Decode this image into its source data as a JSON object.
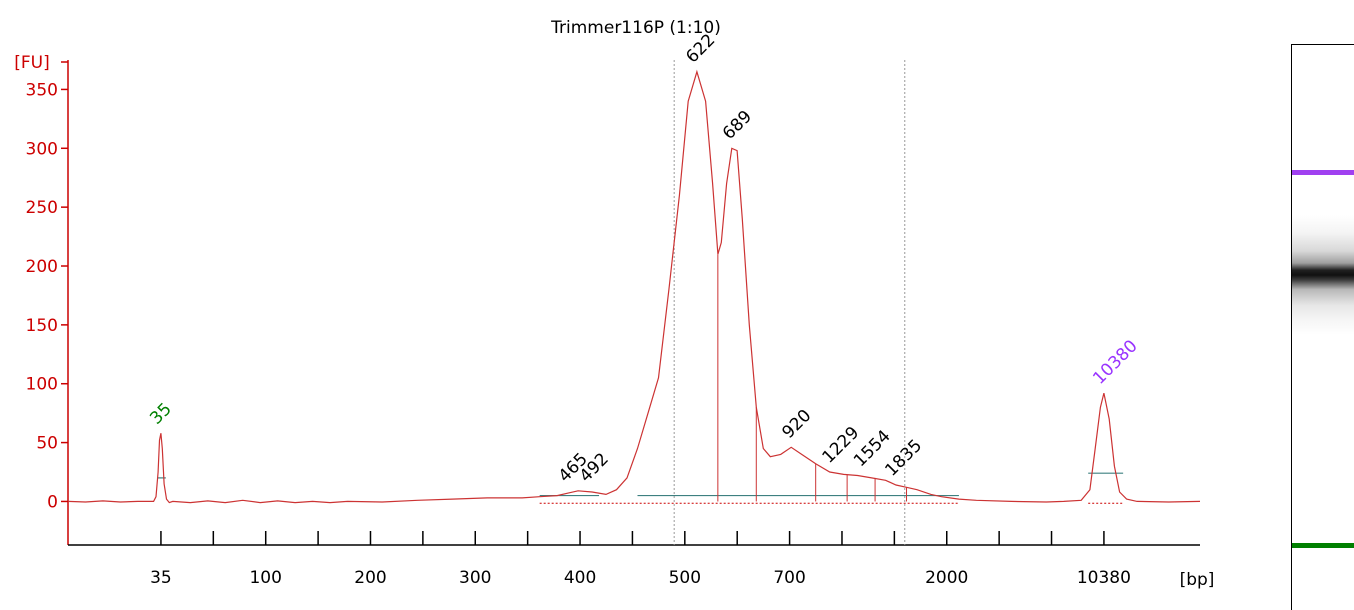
{
  "chart_data": {
    "type": "line",
    "title": "Trimmer116P (1:10)",
    "ylabel": "[FU]",
    "xlabel": "[bp]",
    "ylim": [
      -37,
      375
    ],
    "yticks": [
      0,
      50,
      100,
      150,
      200,
      250,
      300,
      350
    ],
    "xticks": [
      "35",
      "",
      "100",
      "",
      "200",
      "",
      "300",
      "",
      "400",
      "",
      "500",
      "",
      "700",
      "",
      "",
      "2000",
      "",
      "",
      "10380"
    ],
    "colors": {
      "trace": "#cc3333",
      "axis": "#cc0000",
      "lower_marker": "#008000",
      "upper_marker": "#9933ff",
      "region_line": "#999999",
      "baseline": "#3d8080"
    },
    "series": [
      {
        "points": [
          [
            0,
            0
          ],
          [
            0.5,
            -0.5
          ],
          [
            1.0,
            0.5
          ],
          [
            1.5,
            -0.5
          ],
          [
            2.0,
            0
          ],
          [
            2.45,
            0
          ],
          [
            2.52,
            4
          ],
          [
            2.58,
            25
          ],
          [
            2.62,
            52
          ],
          [
            2.66,
            58
          ],
          [
            2.7,
            45
          ],
          [
            2.75,
            15
          ],
          [
            2.82,
            2
          ],
          [
            2.9,
            -1
          ],
          [
            3.0,
            0
          ],
          [
            3.5,
            -1
          ],
          [
            4.0,
            0.5
          ],
          [
            4.5,
            -1
          ],
          [
            5.0,
            1
          ],
          [
            5.5,
            -1
          ],
          [
            6.0,
            0.5
          ],
          [
            6.5,
            -1
          ],
          [
            7.0,
            0
          ],
          [
            7.5,
            -1
          ],
          [
            8.0,
            0
          ],
          [
            9.0,
            -0.5
          ],
          [
            10.0,
            1
          ],
          [
            11.0,
            2
          ],
          [
            12.0,
            3
          ],
          [
            13.0,
            3
          ],
          [
            13.5,
            4
          ],
          [
            14.0,
            5
          ],
          [
            14.3,
            7
          ],
          [
            14.6,
            9
          ],
          [
            15.0,
            8
          ],
          [
            15.4,
            6
          ],
          [
            15.7,
            10
          ],
          [
            16.0,
            20
          ],
          [
            16.3,
            45
          ],
          [
            16.6,
            75
          ],
          [
            16.9,
            105
          ],
          [
            17.2,
            180
          ],
          [
            17.5,
            260
          ],
          [
            17.75,
            340
          ],
          [
            18.0,
            365
          ],
          [
            18.25,
            340
          ],
          [
            18.45,
            270
          ],
          [
            18.6,
            210
          ],
          [
            18.7,
            220
          ],
          [
            18.85,
            270
          ],
          [
            19.0,
            300
          ],
          [
            19.15,
            298
          ],
          [
            19.3,
            240
          ],
          [
            19.5,
            150
          ],
          [
            19.7,
            80
          ],
          [
            19.9,
            45
          ],
          [
            20.1,
            38
          ],
          [
            20.4,
            40
          ],
          [
            20.7,
            46
          ],
          [
            21.0,
            40
          ],
          [
            21.4,
            32
          ],
          [
            21.8,
            25
          ],
          [
            22.2,
            23
          ],
          [
            22.6,
            22
          ],
          [
            23.0,
            20
          ],
          [
            23.4,
            18
          ],
          [
            23.7,
            14
          ],
          [
            24.0,
            12
          ],
          [
            24.3,
            10
          ],
          [
            24.7,
            6
          ],
          [
            25.0,
            4
          ],
          [
            25.5,
            2
          ],
          [
            26.0,
            1
          ],
          [
            27.0,
            0
          ],
          [
            28.0,
            -0.5
          ],
          [
            28.5,
            0
          ],
          [
            29.0,
            1
          ],
          [
            29.25,
            10
          ],
          [
            29.4,
            45
          ],
          [
            29.55,
            80
          ],
          [
            29.65,
            92
          ],
          [
            29.8,
            70
          ],
          [
            29.95,
            30
          ],
          [
            30.1,
            8
          ],
          [
            30.3,
            2
          ],
          [
            30.6,
            0
          ],
          [
            31.5,
            -0.5
          ],
          [
            32.4,
            0
          ]
        ]
      }
    ],
    "peaks": [
      {
        "label": "35",
        "x": 2.66,
        "y": 58,
        "type": "marker_low"
      },
      {
        "label": "465",
        "x": 14.35,
        "y": 9,
        "type": "peak"
      },
      {
        "label": "492",
        "x": 14.95,
        "y": 9,
        "type": "peak"
      },
      {
        "label": "622",
        "x": 18.0,
        "y": 365,
        "type": "peak"
      },
      {
        "label": "689",
        "x": 19.05,
        "y": 300,
        "type": "peak"
      },
      {
        "label": "920",
        "x": 20.75,
        "y": 46,
        "type": "peak"
      },
      {
        "label": "1229",
        "x": 21.9,
        "y": 25,
        "type": "peak"
      },
      {
        "label": "1554",
        "x": 22.8,
        "y": 22,
        "type": "peak"
      },
      {
        "label": "1835",
        "x": 23.7,
        "y": 14,
        "type": "peak"
      },
      {
        "label": "10380",
        "x": 29.65,
        "y": 92,
        "type": "marker_high"
      }
    ]
  },
  "gel": {
    "upper_marker_color": "#a040f0",
    "lower_marker_color": "#008000"
  }
}
